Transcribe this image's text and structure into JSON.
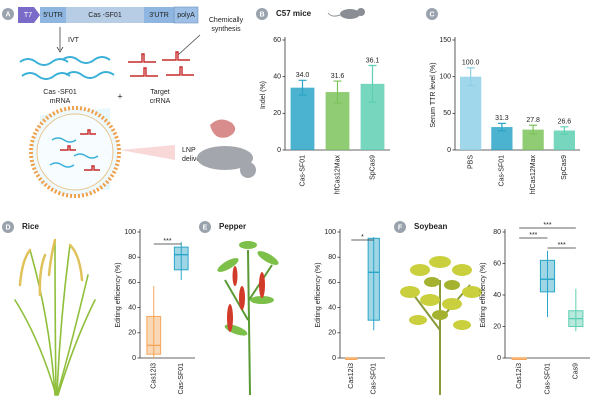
{
  "diagram": {
    "panel": "A",
    "gene": [
      "T7",
      "5'UTR",
      "Cas -SF01",
      "3'UTR",
      "polyA"
    ],
    "synthesis": [
      "Chemically",
      "synthesis"
    ],
    "ivt": "IVT",
    "mrna": [
      "Cas -SF01",
      "mRNA"
    ],
    "plus": "+",
    "crrna": [
      "Target",
      "crRNA"
    ],
    "delivery": [
      "LNP",
      "delivery"
    ]
  },
  "chart_data": [
    {
      "type": "bar",
      "panel": "B",
      "title": "C57 mice",
      "ylabel": "Indel (%)",
      "categories": [
        "Cas-SF01",
        "hfCas12Max",
        "SpCas9"
      ],
      "values": [
        34.0,
        31.6,
        36.1
      ],
      "value_labels": [
        "34.0",
        "31.6",
        "36.1"
      ],
      "errors": [
        4,
        6,
        10
      ],
      "colors": [
        "#2ba5c8",
        "#7dc35b",
        "#5fcfb3"
      ],
      "ylim": [
        0,
        60
      ],
      "yticks": [
        0,
        20,
        40,
        60
      ]
    },
    {
      "type": "bar",
      "panel": "C",
      "ylabel": "Serum TTR level (%)",
      "categories": [
        "PBS",
        "Cas-SF01",
        "hfCas12Max",
        "SpCas9"
      ],
      "values": [
        100.0,
        31.3,
        27.8,
        26.6
      ],
      "value_labels": [
        "100.0",
        "31.3",
        "27.8",
        "26.6"
      ],
      "errors": [
        12,
        5,
        6,
        5
      ],
      "colors": [
        "#8fd0e8",
        "#2ba5c8",
        "#7dc35b",
        "#5fcfb3"
      ],
      "ylim": [
        0,
        150
      ],
      "yticks": [
        0,
        50,
        100,
        150
      ]
    },
    {
      "type": "box",
      "panel": "D",
      "title": "Rice",
      "ylabel": "Editing efficiency (%)",
      "categories": [
        "Cas12i3",
        "Cas-SF01"
      ],
      "boxes": [
        {
          "min": 0,
          "q1": 3,
          "median": 10,
          "q3": 33,
          "max": 57
        },
        {
          "min": 62,
          "q1": 70,
          "median": 82,
          "q3": 88,
          "max": 92
        }
      ],
      "colors": [
        "#f5a65b",
        "#2ba5c8"
      ],
      "annotations": [
        "***"
      ],
      "ylim": [
        0,
        100
      ],
      "yticks": [
        0,
        20,
        40,
        60,
        80,
        100
      ]
    },
    {
      "type": "box",
      "panel": "E",
      "title": "Pepper",
      "ylabel": "Editing efficiency (%)",
      "categories": [
        "Cas12i3",
        "Cas-SF01"
      ],
      "boxes": [
        {
          "min": 0,
          "q1": 0,
          "median": 0,
          "q3": 0,
          "max": 0
        },
        {
          "min": 22,
          "q1": 30,
          "median": 68,
          "q3": 95,
          "max": 96
        }
      ],
      "colors": [
        "#f5a65b",
        "#2ba5c8"
      ],
      "annotations": [
        "*"
      ],
      "ylim": [
        0,
        100
      ],
      "yticks": [
        0,
        20,
        40,
        60,
        80,
        100
      ]
    },
    {
      "type": "box",
      "panel": "F",
      "title": "Soybean",
      "ylabel": "Editing efficiency (%)",
      "categories": [
        "Cas12i3",
        "Cas-SF01",
        "Cas9"
      ],
      "boxes": [
        {
          "min": 0,
          "q1": 0,
          "median": 0,
          "q3": 0,
          "max": 0
        },
        {
          "min": 26,
          "q1": 42,
          "median": 50,
          "q3": 62,
          "max": 68
        },
        {
          "min": 17,
          "q1": 20,
          "median": 25,
          "q3": 30,
          "max": 44
        }
      ],
      "colors": [
        "#f5a65b",
        "#2ba5c8",
        "#5fcfb3"
      ],
      "annotations": [
        "***",
        "***",
        "***"
      ],
      "ylim": [
        0,
        80
      ],
      "yticks": [
        0,
        20,
        40,
        60,
        80
      ]
    }
  ]
}
